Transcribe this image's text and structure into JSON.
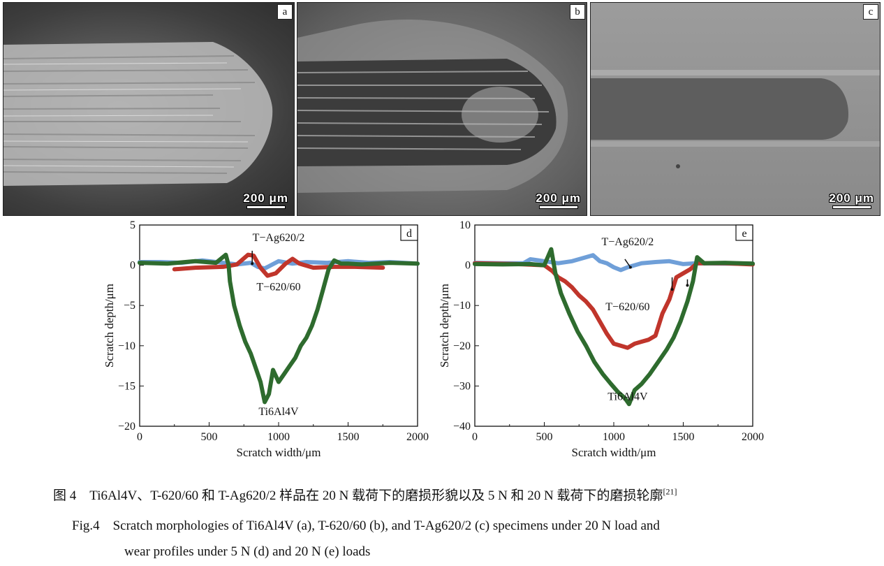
{
  "micrographs": [
    {
      "label": "a",
      "scale": "200 μm"
    },
    {
      "label": "b",
      "scale": "200 μm"
    },
    {
      "label": "c",
      "scale": "200 μm"
    }
  ],
  "chart_data": [
    {
      "type": "line",
      "panel_label": "d",
      "xlabel": "Scratch width/μm",
      "ylabel": "Scratch depth/μm",
      "xlim": [
        0,
        2000
      ],
      "ylim": [
        -20,
        5
      ],
      "xticks": [
        "0",
        "500",
        "1000",
        "1500",
        "2000"
      ],
      "yticks": [
        "5",
        "0",
        "−5",
        "−10",
        "−15",
        "−20"
      ],
      "annotations": [
        "T−Ag620/2",
        "T−620/60",
        "Ti6Al4V"
      ],
      "series": [
        {
          "name": "T−Ag620/2",
          "color": "#6f9fd8",
          "x": [
            0,
            150,
            300,
            450,
            600,
            700,
            800,
            850,
            900,
            1000,
            1100,
            1200,
            1350,
            1500,
            1650,
            1800,
            2000
          ],
          "y": [
            0.4,
            0.4,
            0.3,
            0.6,
            0.3,
            0.1,
            0.3,
            -0.2,
            -0.4,
            0.5,
            0.2,
            0.4,
            0.3,
            0.5,
            0.3,
            0.4,
            0.2
          ]
        },
        {
          "name": "T−620/60",
          "color": "#c0352b",
          "x": [
            250,
            400,
            600,
            700,
            780,
            820,
            870,
            920,
            980,
            1050,
            1100,
            1150,
            1250,
            1400,
            1550,
            1750
          ],
          "y": [
            -0.5,
            -0.3,
            -0.2,
            0.1,
            1.3,
            1.2,
            -0.3,
            -1.3,
            -1.0,
            0.2,
            0.8,
            0.2,
            -0.3,
            -0.2,
            -0.2,
            -0.3
          ]
        },
        {
          "name": "Ti6Al4V",
          "color": "#2e6b2e",
          "x": [
            0,
            200,
            400,
            550,
            620,
            640,
            650,
            680,
            720,
            760,
            800,
            830,
            870,
            900,
            930,
            960,
            1000,
            1040,
            1080,
            1120,
            1160,
            1200,
            1240,
            1280,
            1320,
            1360,
            1400,
            1450,
            1500,
            1600,
            1800,
            2000
          ],
          "y": [
            0.3,
            0.2,
            0.5,
            0.3,
            1.3,
            0.0,
            -2.0,
            -5.0,
            -7.5,
            -9.5,
            -11.0,
            -12.5,
            -14.5,
            -17.0,
            -16.0,
            -13.0,
            -14.5,
            -13.5,
            -12.5,
            -11.5,
            -10.0,
            -9.0,
            -7.5,
            -5.5,
            -3.0,
            -0.5,
            0.6,
            0.2,
            0.2,
            0.1,
            0.3,
            0.2
          ]
        }
      ]
    },
    {
      "type": "line",
      "panel_label": "e",
      "xlabel": "Scratch width/μm",
      "ylabel": "Scratch depth/μm",
      "xlim": [
        0,
        2000
      ],
      "ylim": [
        -40,
        10
      ],
      "xticks": [
        "0",
        "500",
        "1000",
        "1500",
        "2000"
      ],
      "yticks": [
        "10",
        "0",
        "−10",
        "−20",
        "−30",
        "−40"
      ],
      "annotations": [
        "T−Ag620/2",
        "T−620/60",
        "Ti6Al4V"
      ],
      "series": [
        {
          "name": "T−Ag620/2",
          "color": "#6f9fd8",
          "x": [
            0,
            200,
            350,
            400,
            500,
            600,
            700,
            800,
            850,
            900,
            950,
            1000,
            1050,
            1100,
            1200,
            1300,
            1400,
            1500,
            1600,
            1800,
            2000
          ],
          "y": [
            0.6,
            0.5,
            0.5,
            1.5,
            1.0,
            0.5,
            1.0,
            2.0,
            2.5,
            1.0,
            0.5,
            -0.5,
            -1.2,
            -0.5,
            0.5,
            0.8,
            1.0,
            0.3,
            0.5,
            0.4,
            0.4
          ]
        },
        {
          "name": "T−620/60",
          "color": "#c0352b",
          "x": [
            0,
            300,
            500,
            560,
            600,
            650,
            700,
            750,
            800,
            850,
            900,
            950,
            1000,
            1050,
            1100,
            1150,
            1200,
            1250,
            1300,
            1350,
            1400,
            1450,
            1500,
            1550,
            1600,
            1800,
            2000
          ],
          "y": [
            0.5,
            0.3,
            0.0,
            -1.5,
            -3.0,
            -4.0,
            -5.5,
            -7.5,
            -9.0,
            -11.0,
            -14.0,
            -17.0,
            -19.5,
            -20.0,
            -20.5,
            -19.5,
            -19.0,
            -18.5,
            -17.5,
            -12.0,
            -8.5,
            -3.0,
            -2.0,
            -1.0,
            0.5,
            0.5,
            0.2
          ]
        },
        {
          "name": "Ti6Al4V",
          "color": "#2e6b2e",
          "x": [
            0,
            200,
            400,
            500,
            550,
            580,
            620,
            680,
            740,
            800,
            860,
            920,
            980,
            1030,
            1080,
            1110,
            1150,
            1200,
            1260,
            1320,
            1380,
            1430,
            1480,
            1530,
            1570,
            1600,
            1650,
            1800,
            2000
          ],
          "y": [
            0.3,
            0.2,
            0.3,
            0.0,
            4.0,
            -2.0,
            -7.0,
            -12.0,
            -16.5,
            -20.0,
            -24.0,
            -27.0,
            -29.5,
            -31.5,
            -33.0,
            -34.5,
            -31.0,
            -29.5,
            -27.0,
            -24.0,
            -21.0,
            -18.0,
            -14.0,
            -9.0,
            -4.0,
            2.0,
            0.5,
            0.6,
            0.4
          ]
        }
      ]
    }
  ],
  "caption": {
    "cn_main": "图 4　Ti6Al4V、T-620/60 和 T-Ag620/2 样品在 20 N 载荷下的磨损形貌以及 5 N 和 20 N 载荷下的磨损轮廓",
    "cn_ref": "[21]",
    "en_line1": "Fig.4　Scratch morphologies of Ti6Al4V (a), T-620/60 (b), and T-Ag620/2 (c) specimens under 20 N load and",
    "en_line2": "wear profiles under 5 N (d) and 20 N (e) loads"
  }
}
